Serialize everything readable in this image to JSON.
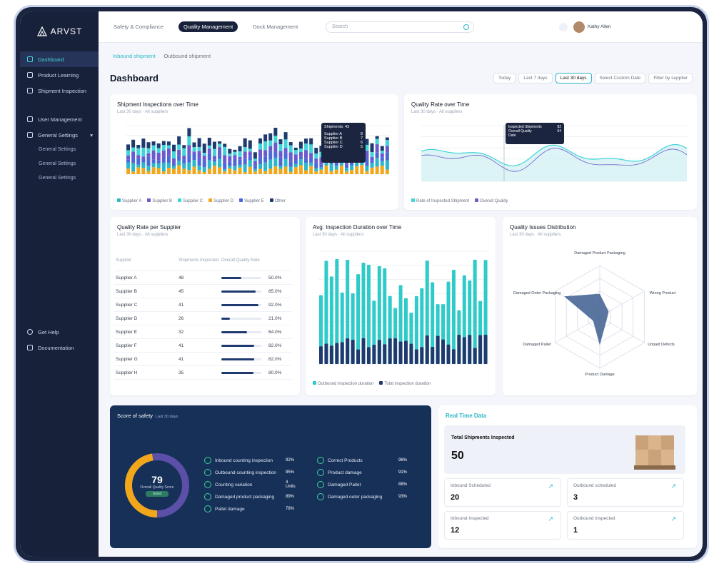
{
  "app": {
    "logo": "ARVST"
  },
  "top_tabs": [
    {
      "label": "Safety & Compliance"
    },
    {
      "label": "Quality Management"
    },
    {
      "label": "Dock Management"
    }
  ],
  "search": {
    "placeholder": "Search"
  },
  "user": {
    "name": "Kathy Allen"
  },
  "sidebar": {
    "items": [
      {
        "label": "Dashboard"
      },
      {
        "label": "Product Learning"
      },
      {
        "label": "Shipment Inspection"
      },
      {
        "label": "User Management"
      },
      {
        "label": "General Settings"
      }
    ],
    "subitems": [
      "General Settings",
      "General Settings",
      "General Settings"
    ],
    "bottom": [
      {
        "label": "Get Help"
      },
      {
        "label": "Documentation"
      }
    ]
  },
  "subtabs": [
    "Inbound shipment",
    "Outbound shipment"
  ],
  "page_title": "Dashboard",
  "filters": [
    "Today",
    "Last 7 days",
    "Last 30 days",
    "Select Custom Date",
    "Filter by supplier"
  ],
  "chart1": {
    "title": "Shipment Inspections over Time",
    "subtitle": "Last 30 days · All suppliers",
    "legend": [
      "Supplier A",
      "Supplier B",
      "Supplier C",
      "Supplier D",
      "Supplier E",
      "Other"
    ],
    "tooltip": {
      "title": "Shipments: 43",
      "rows": [
        "Supplier A",
        "Supplier B",
        "Supplier C",
        "Supplier D"
      ],
      "vals": [
        "8",
        "7",
        "6",
        "5"
      ]
    }
  },
  "chart2": {
    "title": "Quality Rate over Time",
    "subtitle": "Last 30 days · All suppliers",
    "legend": [
      "Rate of Inspected Shipment",
      "Overall Quality"
    ],
    "tooltip": {
      "rows": [
        "Inspected Shipments",
        "Overall Quality",
        "Date"
      ],
      "vals": [
        "82",
        "64"
      ]
    }
  },
  "chart3": {
    "title": "Quality Rate per Supplier",
    "subtitle": "Last 30 days · All suppliers",
    "headers": [
      "Supplier",
      "Shipments Inspected",
      "Overall Quality Rate"
    ],
    "rows": [
      {
        "name": "Supplier A",
        "count": "48",
        "rate": 50,
        "pct": "50.0%"
      },
      {
        "name": "Supplier B",
        "count": "45",
        "rate": 85,
        "pct": "85.0%"
      },
      {
        "name": "Supplier C",
        "count": "41",
        "rate": 92,
        "pct": "92.0%"
      },
      {
        "name": "Supplier D",
        "count": "26",
        "rate": 21,
        "pct": "21.0%"
      },
      {
        "name": "Supplier E",
        "count": "32",
        "rate": 64,
        "pct": "64.0%"
      },
      {
        "name": "Supplier F",
        "count": "41",
        "rate": 82,
        "pct": "82.0%"
      },
      {
        "name": "Supplier G",
        "count": "41",
        "rate": 82,
        "pct": "82.0%"
      },
      {
        "name": "Supplier H",
        "count": "35",
        "rate": 80,
        "pct": "80.0%"
      }
    ]
  },
  "chart4": {
    "title": "Avg. Inspection Duration over Time",
    "subtitle": "Last 30 days · All suppliers",
    "legend": [
      "Outbound inspection duration",
      "Total inspection duration"
    ]
  },
  "chart5": {
    "title": "Quality Issues Distribution",
    "subtitle": "Last 30 days · All suppliers",
    "axes": [
      "Damaged Product Packaging",
      "Wrong Product",
      "Unpaid Defects",
      "Product Damage",
      "Damaged Pallet",
      "Damaged Outer Packaging"
    ]
  },
  "score": {
    "title": "Score of safety",
    "subtitle": "Last 30 days",
    "value": "79",
    "label": "Overall Quality Score",
    "pill": "Good",
    "metrics_left": [
      {
        "label": "Inbound counting inspection",
        "val": "92%"
      },
      {
        "label": "Outbound counting inspection",
        "val": "95%"
      },
      {
        "label": "Counting variation",
        "val": "4 Units"
      },
      {
        "label": "Damaged product packaging",
        "val": "89%"
      },
      {
        "label": "Pallet damage",
        "val": "78%"
      }
    ],
    "metrics_right": [
      {
        "label": "Correct Products",
        "val": "96%"
      },
      {
        "label": "Product damage",
        "val": "91%"
      },
      {
        "label": "Damaged Pallet",
        "val": "88%"
      },
      {
        "label": "Damaged outer packaging",
        "val": "93%"
      }
    ]
  },
  "realtime": {
    "title": "Real Time Data",
    "total_label": "Total Shipments Inspected",
    "total_value": "50",
    "mini": [
      {
        "label": "Inbound Scheduled",
        "value": "20"
      },
      {
        "label": "Outbound scheduled",
        "value": "3"
      },
      {
        "label": "Inbound Inspected",
        "value": "12"
      },
      {
        "label": "Outbound Inspected",
        "value": "1"
      }
    ]
  },
  "colors": {
    "accent": "#2ab7c9",
    "navy": "#17213a",
    "orange": "#f2a71b",
    "indigo": "#6a5acd"
  }
}
